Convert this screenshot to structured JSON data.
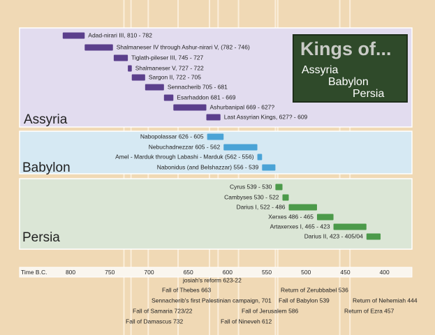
{
  "chart_data": {
    "type": "timeline",
    "title": "Kings of...",
    "title_lines": [
      "Assyria",
      "Babylon",
      "Persia"
    ],
    "x_label": "Time B.C.",
    "xlim": [
      865,
      365
    ],
    "xticks": [
      800,
      750,
      700,
      650,
      600,
      550,
      500,
      450,
      400
    ],
    "groups": [
      {
        "name": "Assyria",
        "color": "#5b3f8c",
        "bars": [
          {
            "label": "Adad-nirari III, 810 - 782",
            "start": 810,
            "end": 782
          },
          {
            "label": "Shalmaneser IV through Ashur-nirari V, (782 - 746)",
            "start": 782,
            "end": 746
          },
          {
            "label": "Tiglath-pileser III, 745 - 727",
            "start": 745,
            "end": 727
          },
          {
            "label": "Shalmaneser V, 727 - 722",
            "start": 727,
            "end": 722
          },
          {
            "label": "Sargon II, 722 - 705",
            "start": 722,
            "end": 705
          },
          {
            "label": "Sennacherib 705 - 681",
            "start": 705,
            "end": 681
          },
          {
            "label": "Esarhaddon 681 - 669",
            "start": 681,
            "end": 669
          },
          {
            "label": "Ashurbanipal 669 - 627?",
            "start": 669,
            "end": 627
          },
          {
            "label": "Last Assyrian Kings, 627? - 609",
            "start": 627,
            "end": 609
          }
        ]
      },
      {
        "name": "Babylon",
        "color": "#4aa3d6",
        "bars": [
          {
            "label": "Nabopolassar 626 - 605",
            "start": 626,
            "end": 605
          },
          {
            "label": "Nebuchadnezzar 605 - 562",
            "start": 605,
            "end": 562
          },
          {
            "label": "Amel - Marduk through Labashi - Marduk (562 - 556)",
            "start": 562,
            "end": 556
          },
          {
            "label": "Nabonidus (and Belshazzar) 556 - 539",
            "start": 556,
            "end": 539
          }
        ]
      },
      {
        "name": "Persia",
        "color": "#4c9a4a",
        "bars": [
          {
            "label": "Cyrus 539 - 530",
            "start": 539,
            "end": 530
          },
          {
            "label": "Cambyses 530 - 522",
            "start": 530,
            "end": 522
          },
          {
            "label": "Darius I, 522 - 486",
            "start": 522,
            "end": 486
          },
          {
            "label": "Xerxes 486 - 465",
            "start": 486,
            "end": 465
          },
          {
            "label": "Artaxerxes I, 465 - 423",
            "start": 465,
            "end": 423
          },
          {
            "label": "Darius II, 423 - 405/04",
            "start": 423,
            "end": 405
          }
        ]
      }
    ],
    "events": [
      {
        "label": "josiah's reform 623-22",
        "year": 623
      },
      {
        "label": "Fall of Thebes 663",
        "year": 663
      },
      {
        "label": "Sennacherib's first Palestinian campaign, 701",
        "year": 701
      },
      {
        "label": "Fall of Samaria 723/22",
        "year": 723
      },
      {
        "label": "Fall of Damascus 732",
        "year": 732
      },
      {
        "label": "Fall of Nineveh 612",
        "year": 612
      },
      {
        "label": "Fall of Jerusalem 586",
        "year": 586
      },
      {
        "label": "Fall of Babylon 539",
        "year": 539
      },
      {
        "label": "Return of Zerubbabel 536",
        "year": 536
      },
      {
        "label": "Return of Nehemiah 444",
        "year": 444
      },
      {
        "label": "Return of Ezra 457",
        "year": 457
      }
    ]
  }
}
